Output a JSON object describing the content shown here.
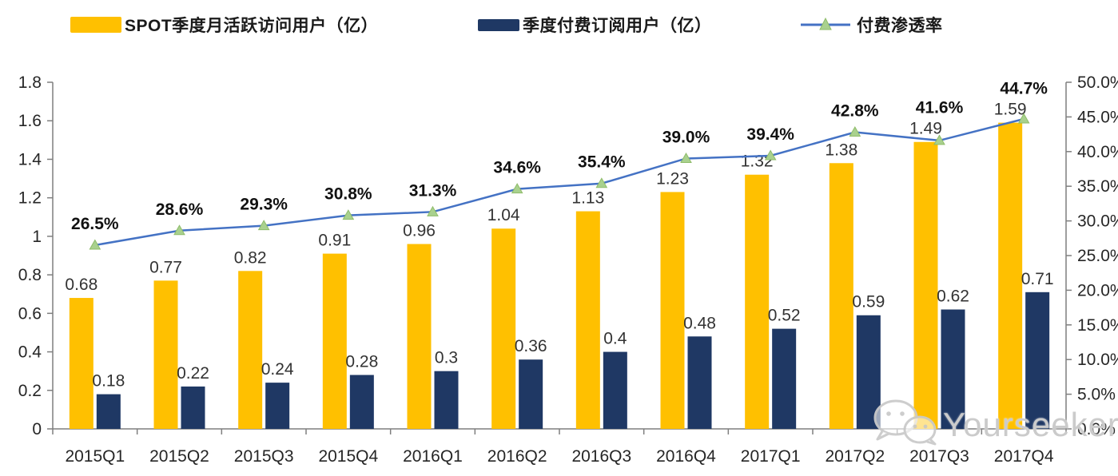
{
  "legend": {
    "items": [
      {
        "label": "SPOT季度月活跃访问用户（亿）",
        "color": "#FFC000",
        "type": "bar"
      },
      {
        "label": "季度付费订阅用户（亿）",
        "color": "#1F3864",
        "type": "bar"
      },
      {
        "label": "付费渗透率",
        "color": "#4472C4",
        "marker_color": "#A9D18E",
        "type": "line"
      }
    ]
  },
  "watermark": {
    "text": "Yourseeker",
    "icon": "wechat-icon"
  },
  "chart_data": {
    "type": "bar",
    "subtype": "grouped-bars-with-line-overlay",
    "title": "",
    "xlabel": "",
    "ylabel_left": "",
    "ylabel_right": "",
    "grid": false,
    "legend_position": "top",
    "categories": [
      "2015Q1",
      "2015Q2",
      "2015Q3",
      "2015Q4",
      "2016Q1",
      "2016Q2",
      "2016Q3",
      "2016Q4",
      "2017Q1",
      "2017Q2",
      "2017Q3",
      "2017Q4"
    ],
    "series": [
      {
        "name": "SPOT季度月活跃访问用户（亿）",
        "type": "bar",
        "axis": "left",
        "color": "#FFC000",
        "values": [
          0.68,
          0.77,
          0.82,
          0.91,
          0.96,
          1.04,
          1.13,
          1.23,
          1.32,
          1.38,
          1.49,
          1.59
        ],
        "labels": [
          "0.68",
          "0.77",
          "0.82",
          "0.91",
          "0.96",
          "1.04",
          "1.13",
          "1.23",
          "1.32",
          "1.38",
          "1.49",
          "1.59"
        ]
      },
      {
        "name": "季度付费订阅用户（亿）",
        "type": "bar",
        "axis": "left",
        "color": "#1F3864",
        "values": [
          0.18,
          0.22,
          0.24,
          0.28,
          0.3,
          0.36,
          0.4,
          0.48,
          0.52,
          0.59,
          0.62,
          0.71
        ],
        "labels": [
          "0.18",
          "0.22",
          "0.24",
          "0.28",
          "0.3",
          "0.36",
          "0.4",
          "0.48",
          "0.52",
          "0.59",
          "0.62",
          "0.71"
        ]
      },
      {
        "name": "付费渗透率",
        "type": "line",
        "axis": "right",
        "color": "#4472C4",
        "marker": "triangle",
        "marker_color": "#A9D18E",
        "values": [
          26.5,
          28.6,
          29.3,
          30.8,
          31.3,
          34.6,
          35.4,
          39.0,
          39.4,
          42.8,
          41.6,
          44.7
        ],
        "labels": [
          "26.5%",
          "28.6%",
          "29.3%",
          "30.8%",
          "31.3%",
          "34.6%",
          "35.4%",
          "39.0%",
          "39.4%",
          "42.8%",
          "41.6%",
          "44.7%"
        ]
      }
    ],
    "left_axis": {
      "min": 0,
      "max": 1.8,
      "step": 0.2,
      "tick_labels": [
        "0",
        "0.2",
        "0.4",
        "0.6",
        "0.8",
        "1",
        "1.2",
        "1.4",
        "1.6",
        "1.8"
      ]
    },
    "right_axis": {
      "min": 0,
      "max": 50,
      "step": 5,
      "tick_labels": [
        "0.0%",
        "5.0%",
        "10.0%",
        "15.0%",
        "20.0%",
        "25.0%",
        "30.0%",
        "35.0%",
        "40.0%",
        "45.0%",
        "50.0%"
      ]
    },
    "axis_color": "#7f7f7f",
    "tick_label_color": "#262626",
    "bar_label_color": "#333333",
    "pct_label_color": "#111111"
  }
}
